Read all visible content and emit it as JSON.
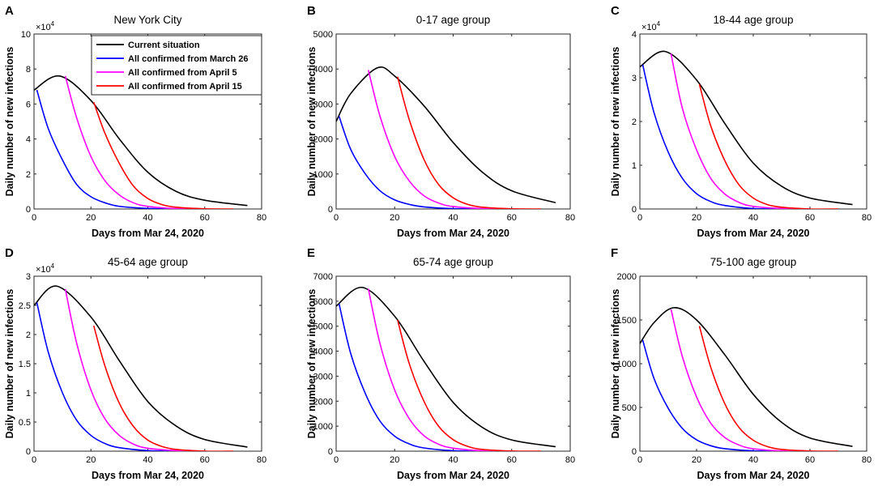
{
  "figure": {
    "xlabel": "Days from Mar 24, 2020",
    "ylabel": "Daily number of new infections",
    "legend": [
      "Current situation",
      "All confirmed from March 26",
      "All confirmed from April 5",
      "All confirmed from April 15"
    ],
    "series_colors": [
      "#000000",
      "#0000ff",
      "#ff00ff",
      "#ff0000"
    ]
  },
  "chart_data": [
    {
      "panel": "A",
      "type": "line",
      "title": "New York City",
      "xlabel": "Days from Mar 24, 2020",
      "ylabel": "Daily number of new infections",
      "xlim": [
        0,
        80
      ],
      "ylim": [
        0,
        10
      ],
      "y_multiplier": "×10",
      "y_exponent": "4",
      "xticks": [
        "0",
        "20",
        "40",
        "60",
        "80"
      ],
      "yticks": [
        "0",
        "2",
        "4",
        "6",
        "8",
        "10"
      ],
      "ytick_values": [
        0,
        2,
        4,
        6,
        8,
        10
      ],
      "legend_position": "top-right",
      "series": [
        {
          "name": "Current situation",
          "x": [
            0,
            9,
            20,
            30,
            40,
            50,
            60,
            75
          ],
          "y": [
            6.8,
            7.6,
            6.2,
            4.0,
            2.1,
            1.0,
            0.5,
            0.2
          ]
        },
        {
          "name": "All confirmed from March 26",
          "x": [
            1,
            5,
            10,
            15,
            20,
            25,
            30,
            40,
            50
          ],
          "y": [
            6.8,
            4.6,
            2.8,
            1.4,
            0.7,
            0.35,
            0.15,
            0.03,
            0
          ]
        },
        {
          "name": "All confirmed from April 5",
          "x": [
            11,
            15,
            20,
            25,
            30,
            35,
            40,
            50,
            60
          ],
          "y": [
            7.6,
            5.2,
            3.0,
            1.6,
            0.8,
            0.35,
            0.15,
            0.02,
            0
          ]
        },
        {
          "name": "All confirmed from April 15",
          "x": [
            21,
            25,
            30,
            35,
            40,
            45,
            50,
            60,
            70
          ],
          "y": [
            6.1,
            4.3,
            2.6,
            1.3,
            0.6,
            0.25,
            0.1,
            0.01,
            0
          ]
        }
      ]
    },
    {
      "panel": "B",
      "type": "line",
      "title": "0-17 age group",
      "xlabel": "Days from Mar 24, 2020",
      "ylabel": "Daily number of new infections",
      "xlim": [
        0,
        80
      ],
      "ylim": [
        0,
        5000
      ],
      "y_multiplier": "",
      "y_exponent": "",
      "xticks": [
        "0",
        "20",
        "40",
        "60",
        "80"
      ],
      "yticks": [
        "0",
        "1000",
        "2000",
        "3000",
        "4000",
        "5000"
      ],
      "ytick_values": [
        0,
        1000,
        2000,
        3000,
        4000,
        5000
      ],
      "legend_position": "",
      "series": [
        {
          "name": "Current situation",
          "x": [
            0,
            5,
            14,
            20,
            30,
            40,
            50,
            60,
            75
          ],
          "y": [
            2500,
            3300,
            4030,
            3800,
            2950,
            1900,
            1050,
            520,
            180
          ]
        },
        {
          "name": "All confirmed from March 26",
          "x": [
            1,
            5,
            10,
            15,
            20,
            25,
            30,
            40,
            50
          ],
          "y": [
            2650,
            1700,
            1000,
            520,
            260,
            130,
            60,
            10,
            0
          ]
        },
        {
          "name": "All confirmed from April 5",
          "x": [
            11,
            15,
            20,
            25,
            30,
            35,
            40,
            50,
            60
          ],
          "y": [
            3970,
            2650,
            1500,
            800,
            380,
            170,
            70,
            10,
            0
          ]
        },
        {
          "name": "All confirmed from April 15",
          "x": [
            21,
            25,
            30,
            35,
            40,
            45,
            50,
            60,
            70
          ],
          "y": [
            3780,
            2550,
            1420,
            700,
            320,
            130,
            50,
            5,
            0
          ]
        }
      ]
    },
    {
      "panel": "C",
      "type": "line",
      "title": "18-44 age group",
      "xlabel": "Days from Mar 24, 2020",
      "ylabel": "Daily number of new infections",
      "xlim": [
        0,
        80
      ],
      "ylim": [
        0,
        4
      ],
      "y_multiplier": "×10",
      "y_exponent": "4",
      "xticks": [
        "0",
        "20",
        "40",
        "60",
        "80"
      ],
      "yticks": [
        "0",
        "1",
        "2",
        "3",
        "4"
      ],
      "ytick_values": [
        0,
        1,
        2,
        3,
        4
      ],
      "legend_position": "",
      "series": [
        {
          "name": "Current situation",
          "x": [
            0,
            9,
            20,
            30,
            40,
            50,
            60,
            75
          ],
          "y": [
            3.25,
            3.6,
            2.95,
            1.95,
            1.05,
            0.52,
            0.25,
            0.1
          ]
        },
        {
          "name": "All confirmed from March 26",
          "x": [
            1,
            5,
            10,
            15,
            20,
            25,
            30,
            40,
            50
          ],
          "y": [
            3.3,
            2.2,
            1.3,
            0.7,
            0.35,
            0.17,
            0.08,
            0.01,
            0
          ]
        },
        {
          "name": "All confirmed from April 5",
          "x": [
            11,
            15,
            20,
            25,
            30,
            35,
            40,
            50,
            60
          ],
          "y": [
            3.55,
            2.3,
            1.35,
            0.7,
            0.34,
            0.15,
            0.06,
            0.01,
            0
          ]
        },
        {
          "name": "All confirmed from April 15",
          "x": [
            21,
            25,
            30,
            35,
            40,
            45,
            50,
            60,
            70
          ],
          "y": [
            2.85,
            1.9,
            1.1,
            0.55,
            0.25,
            0.1,
            0.04,
            0,
            0
          ]
        }
      ]
    },
    {
      "panel": "D",
      "type": "line",
      "title": "45-64 age group",
      "xlabel": "Days from Mar 24, 2020",
      "ylabel": "Daily number of new infections",
      "xlim": [
        0,
        80
      ],
      "ylim": [
        0,
        3
      ],
      "y_multiplier": "×10",
      "y_exponent": "4",
      "xticks": [
        "0",
        "20",
        "40",
        "60",
        "80"
      ],
      "yticks": [
        "0",
        "0.5",
        "1",
        "1.5",
        "2",
        "2.5",
        "3"
      ],
      "ytick_values": [
        0,
        0.5,
        1,
        1.5,
        2,
        2.5,
        3
      ],
      "legend_position": "",
      "series": [
        {
          "name": "Current situation",
          "x": [
            0,
            8,
            20,
            30,
            40,
            50,
            60,
            75
          ],
          "y": [
            2.5,
            2.83,
            2.3,
            1.55,
            0.85,
            0.43,
            0.2,
            0.07
          ]
        },
        {
          "name": "All confirmed from March 26",
          "x": [
            1,
            5,
            10,
            15,
            20,
            25,
            30,
            40,
            50
          ],
          "y": [
            2.55,
            1.7,
            1.0,
            0.53,
            0.27,
            0.13,
            0.06,
            0.01,
            0
          ]
        },
        {
          "name": "All confirmed from April 5",
          "x": [
            11,
            15,
            20,
            25,
            30,
            35,
            40,
            50,
            60
          ],
          "y": [
            2.78,
            1.85,
            1.05,
            0.55,
            0.27,
            0.12,
            0.05,
            0.01,
            0
          ]
        },
        {
          "name": "All confirmed from April 15",
          "x": [
            21,
            25,
            30,
            35,
            40,
            45,
            50,
            60,
            70
          ],
          "y": [
            2.15,
            1.45,
            0.82,
            0.42,
            0.19,
            0.08,
            0.03,
            0,
            0
          ]
        }
      ]
    },
    {
      "panel": "E",
      "type": "line",
      "title": "65-74 age group",
      "xlabel": "Days from Mar 24, 2020",
      "ylabel": "Daily number of new infections",
      "xlim": [
        0,
        80
      ],
      "ylim": [
        0,
        7000
      ],
      "y_multiplier": "",
      "y_exponent": "",
      "xticks": [
        "0",
        "20",
        "40",
        "60",
        "80"
      ],
      "yticks": [
        "0",
        "1000",
        "2000",
        "3000",
        "4000",
        "5000",
        "6000",
        "7000"
      ],
      "ytick_values": [
        0,
        1000,
        2000,
        3000,
        4000,
        5000,
        6000,
        7000
      ],
      "legend_position": "",
      "series": [
        {
          "name": "Current situation",
          "x": [
            0,
            9,
            20,
            30,
            40,
            50,
            60,
            75
          ],
          "y": [
            5800,
            6550,
            5400,
            3600,
            1950,
            950,
            450,
            180
          ]
        },
        {
          "name": "All confirmed from March 26",
          "x": [
            1,
            5,
            10,
            15,
            20,
            25,
            30,
            40,
            50
          ],
          "y": [
            5900,
            3900,
            2300,
            1200,
            600,
            290,
            130,
            20,
            0
          ]
        },
        {
          "name": "All confirmed from April 5",
          "x": [
            11,
            15,
            20,
            25,
            30,
            35,
            40,
            50,
            60
          ],
          "y": [
            6500,
            4300,
            2450,
            1300,
            620,
            280,
            120,
            15,
            0
          ]
        },
        {
          "name": "All confirmed from April 15",
          "x": [
            21,
            25,
            30,
            35,
            40,
            45,
            50,
            60,
            70
          ],
          "y": [
            5250,
            3500,
            2000,
            1000,
            460,
            190,
            70,
            5,
            0
          ]
        }
      ]
    },
    {
      "panel": "F",
      "type": "line",
      "title": "75-100 age group",
      "xlabel": "Days from Mar 24, 2020",
      "ylabel": "Daily number of new infections",
      "xlim": [
        0,
        80
      ],
      "ylim": [
        0,
        2000
      ],
      "y_multiplier": "",
      "y_exponent": "",
      "xticks": [
        "0",
        "20",
        "40",
        "60",
        "80"
      ],
      "yticks": [
        "0",
        "500",
        "1000",
        "1500",
        "2000"
      ],
      "ytick_values": [
        0,
        500,
        1000,
        1500,
        2000
      ],
      "legend_position": "",
      "series": [
        {
          "name": "Current situation",
          "x": [
            0,
            5,
            12,
            20,
            30,
            40,
            50,
            60,
            75
          ],
          "y": [
            1230,
            1470,
            1640,
            1500,
            1100,
            650,
            330,
            150,
            55
          ]
        },
        {
          "name": "All confirmed from March 26",
          "x": [
            1,
            5,
            10,
            15,
            20,
            25,
            30,
            40,
            50
          ],
          "y": [
            1270,
            830,
            490,
            260,
            130,
            62,
            28,
            4,
            0
          ]
        },
        {
          "name": "All confirmed from April 5",
          "x": [
            11,
            15,
            20,
            25,
            30,
            35,
            40,
            50,
            60
          ],
          "y": [
            1620,
            1080,
            620,
            320,
            155,
            70,
            28,
            3,
            0
          ]
        },
        {
          "name": "All confirmed from April 15",
          "x": [
            21,
            25,
            30,
            35,
            40,
            45,
            50,
            60,
            70
          ],
          "y": [
            1430,
            960,
            540,
            270,
            125,
            52,
            20,
            2,
            0
          ]
        }
      ]
    }
  ]
}
